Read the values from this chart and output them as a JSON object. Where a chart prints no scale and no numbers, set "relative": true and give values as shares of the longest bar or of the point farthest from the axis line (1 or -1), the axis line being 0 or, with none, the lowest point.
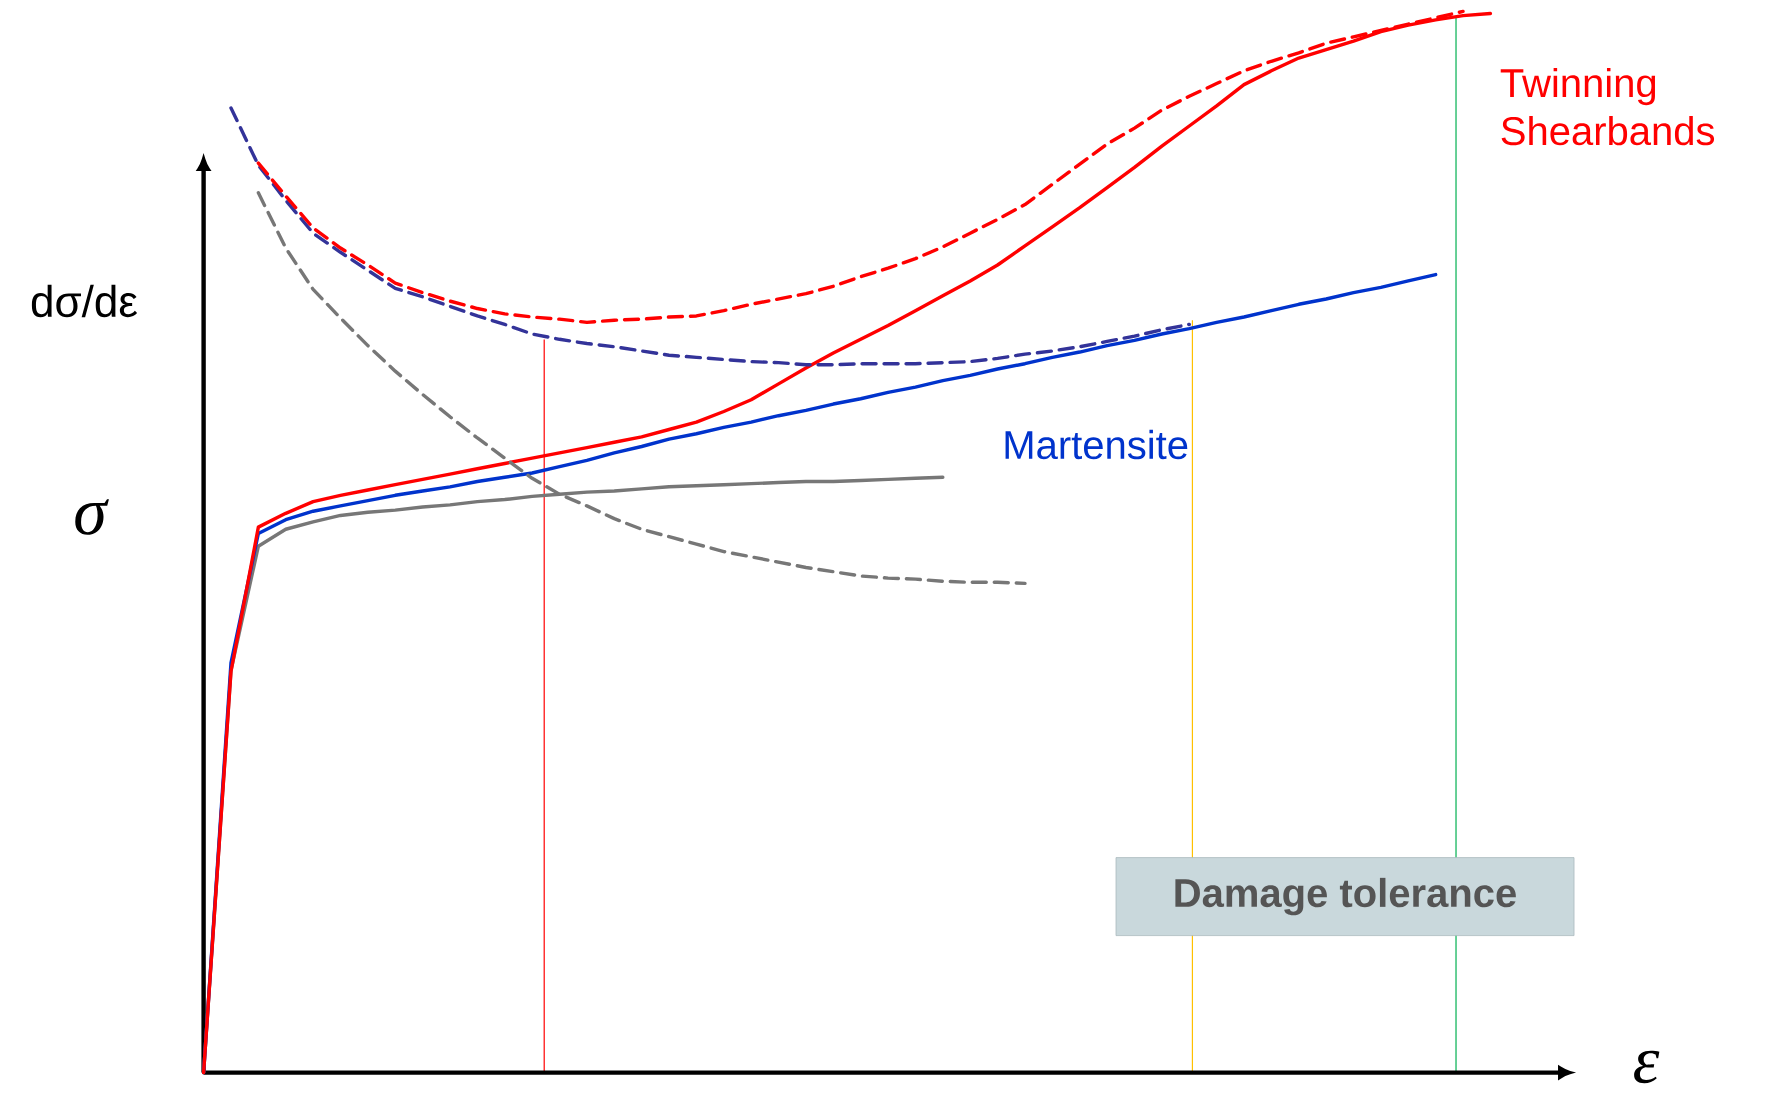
{
  "chart_data": {
    "type": "line",
    "relative": true,
    "marker": "none",
    "xlabel": "ε",
    "ylabel": "σ",
    "annotations": [
      "dσ/dε",
      "Damage tolerance"
    ],
    "categories": [
      null,
      null,
      null,
      null,
      null,
      null,
      null,
      null,
      null,
      null,
      null,
      null,
      null,
      null,
      null,
      null,
      null,
      null,
      null,
      null,
      null,
      null,
      null,
      null,
      null,
      null,
      null,
      null,
      null,
      null,
      null,
      null,
      null,
      null,
      null,
      null,
      null,
      null,
      null,
      null,
      null,
      null,
      null,
      null,
      null,
      null,
      null,
      null
    ],
    "series": [
      {
        "color": "#777777",
        "line_style": "solid",
        "values": [
          0,
          0.379,
          0.496,
          0.512,
          0.519,
          0.525,
          0.528,
          0.53,
          0.533,
          0.535,
          0.538,
          0.54,
          0.543,
          0.545,
          0.547,
          0.548,
          0.55,
          0.552,
          0.553,
          0.554,
          0.555,
          0.556,
          0.557,
          0.557,
          0.558,
          0.559,
          0.56,
          0.561,
          null,
          null,
          null,
          null,
          null,
          null,
          null,
          null,
          null,
          null,
          null,
          null,
          null,
          null,
          null,
          null,
          null,
          null,
          null,
          null
        ]
      },
      {
        "name": "Martensite",
        "color": "#0033cc",
        "line_style": "solid",
        "values": [
          0,
          0.386,
          0.508,
          0.521,
          0.529,
          0.534,
          0.539,
          0.544,
          0.548,
          0.552,
          0.557,
          0.561,
          0.565,
          0.571,
          0.577,
          0.584,
          0.59,
          0.597,
          0.602,
          0.608,
          0.613,
          0.619,
          0.624,
          0.63,
          0.635,
          0.641,
          0.646,
          0.652,
          0.657,
          0.663,
          0.668,
          0.674,
          0.679,
          0.685,
          0.69,
          0.696,
          0.701,
          0.707,
          0.712,
          0.718,
          0.724,
          0.729,
          0.735,
          0.74,
          0.746,
          0.752,
          null,
          null
        ]
      },
      {
        "name": "Twinning Shearbands",
        "color": "#ff0000",
        "line_style": "solid",
        "values": [
          0,
          0.378,
          0.514,
          0.527,
          0.538,
          0.544,
          0.549,
          0.554,
          0.559,
          0.564,
          0.569,
          0.574,
          0.579,
          0.584,
          0.589,
          0.594,
          0.599,
          0.606,
          0.613,
          0.623,
          0.634,
          0.649,
          0.664,
          0.678,
          0.691,
          0.704,
          0.718,
          0.732,
          0.746,
          0.761,
          0.779,
          0.797,
          0.815,
          0.834,
          0.853,
          0.873,
          0.892,
          0.911,
          0.931,
          0.944,
          0.956,
          0.964,
          0.972,
          0.981,
          0.987,
          0.992,
          0.996,
          0.998
        ]
      },
      {
        "color": "#777777",
        "line_style": "dashed",
        "values": [
          null,
          null,
          0.829,
          0.777,
          0.738,
          0.711,
          0.685,
          0.661,
          0.639,
          0.618,
          0.598,
          0.579,
          0.56,
          0.545,
          0.534,
          0.522,
          0.512,
          0.505,
          0.498,
          0.491,
          0.486,
          0.481,
          0.476,
          0.472,
          0.468,
          0.466,
          0.465,
          0.463,
          0.462,
          0.462,
          0.461,
          null,
          null,
          null,
          null,
          null,
          null,
          null,
          null,
          null,
          null,
          null,
          null,
          null,
          null,
          null,
          null,
          null
        ]
      },
      {
        "color": "#333399",
        "line_style": "dashed",
        "values": [
          null,
          0.909,
          0.855,
          0.822,
          0.791,
          0.773,
          0.756,
          0.739,
          0.731,
          0.722,
          0.713,
          0.705,
          0.696,
          0.691,
          0.687,
          0.684,
          0.68,
          0.676,
          0.674,
          0.672,
          0.67,
          0.669,
          0.667,
          0.667,
          0.668,
          0.668,
          0.668,
          0.669,
          0.67,
          0.673,
          0.677,
          0.68,
          0.684,
          0.689,
          0.694,
          0.7,
          0.705,
          null,
          null,
          null,
          null,
          null,
          null,
          null,
          null,
          null,
          null,
          null
        ]
      },
      {
        "color": "#ff0000",
        "line_style": "dashed",
        "values": [
          null,
          null,
          0.857,
          0.826,
          0.796,
          0.777,
          0.761,
          0.744,
          0.735,
          0.727,
          0.72,
          0.715,
          0.712,
          0.71,
          0.707,
          0.709,
          0.71,
          0.712,
          0.713,
          0.718,
          0.724,
          0.729,
          0.734,
          0.741,
          0.75,
          0.758,
          0.767,
          0.778,
          0.791,
          0.804,
          0.818,
          0.837,
          0.856,
          0.875,
          0.89,
          0.907,
          0.92,
          0.932,
          0.944,
          0.953,
          0.961,
          0.97,
          0.976,
          0.982,
          0.988,
          0.994,
          1.0,
          null
        ]
      }
    ]
  }
}
